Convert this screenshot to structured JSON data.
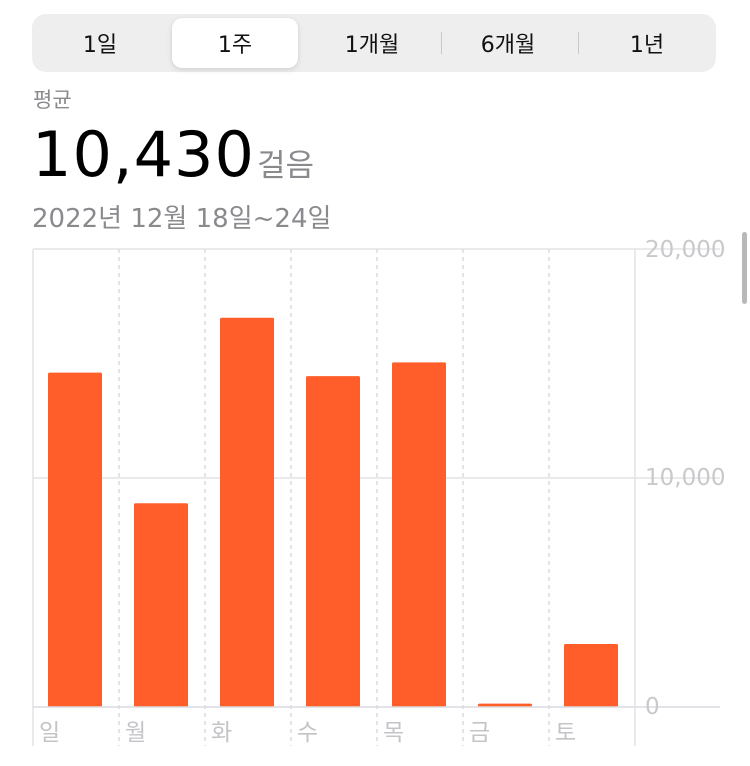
{
  "segment": {
    "tabs": [
      "1일",
      "1주",
      "1개월",
      "6개월",
      "1년"
    ],
    "selected": "1주"
  },
  "summary": {
    "label": "평균",
    "value": "10,430",
    "unit": "걸음",
    "date_range": "2022년 12월 18일~24일"
  },
  "chart_data": {
    "type": "bar",
    "categories": [
      "일",
      "월",
      "화",
      "수",
      "목",
      "금",
      "토"
    ],
    "values": [
      14600,
      8900,
      17000,
      14450,
      15050,
      150,
      2750
    ],
    "ylim": [
      0,
      20000
    ],
    "yticks": [
      "20,000",
      "10,000",
      "0"
    ],
    "bar_color": "#FF5E2A",
    "grid": true
  }
}
